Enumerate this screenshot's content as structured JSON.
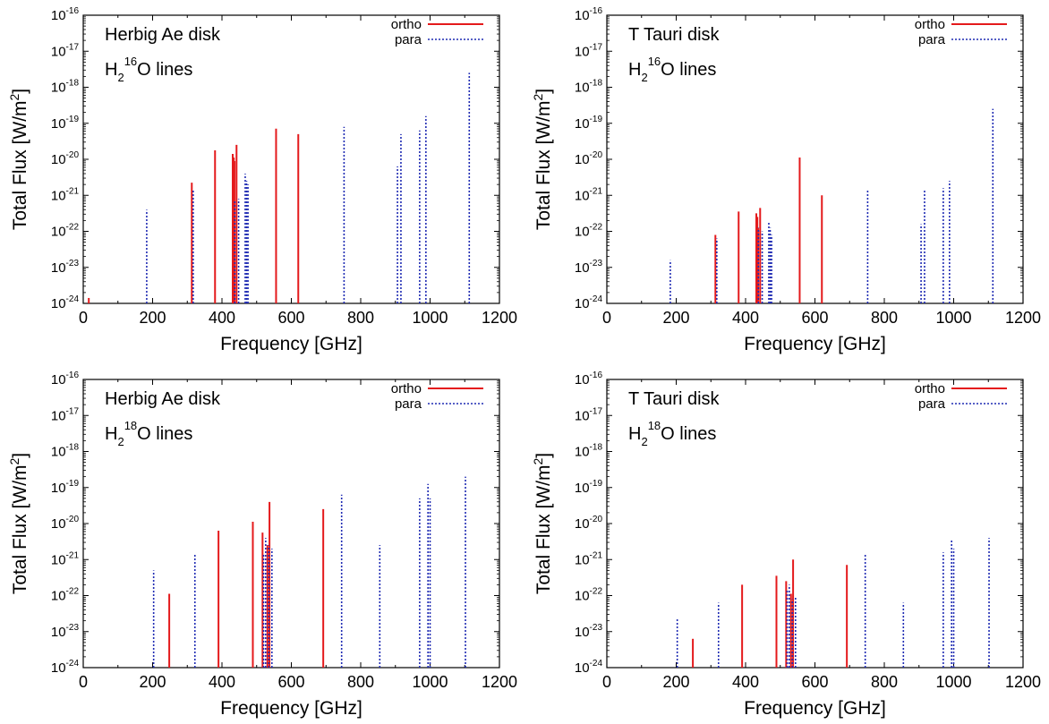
{
  "chart_data": [
    {
      "type": "bar",
      "annotation_line1": "Herbig Ae disk",
      "annotation_line2": {
        "prefix": "H",
        "sub": "2",
        "sup": "16",
        "suffix": "O lines"
      },
      "xlabel": "Frequency [GHz]",
      "ylabel": {
        "main": "Total Flux [W/m",
        "sup": "2",
        "end": "]"
      },
      "xlim": [
        0,
        1200
      ],
      "ylim_log10": [
        -24,
        -16
      ],
      "y_scale": "log",
      "xticks": [
        "0",
        "200",
        "400",
        "600",
        "800",
        "1000",
        "1200"
      ],
      "legend_position": "top-right",
      "series": [
        {
          "name": "ortho",
          "color": "#e41a1c",
          "style": "solid",
          "x": [
            16,
            313,
            380,
            431,
            434,
            436,
            442,
            556,
            620
          ],
          "log10_flux": [
            -23.85,
            -20.65,
            -19.75,
            -19.85,
            -19.95,
            -20.05,
            -19.6,
            -19.15,
            -19.3
          ]
        },
        {
          "name": "para",
          "color": "#1f2bb3",
          "style": "dotted",
          "x": [
            183,
            317,
            437,
            448,
            467,
            471,
            475,
            752,
            906,
            916,
            970,
            988,
            1113
          ],
          "log10_flux": [
            -21.4,
            -20.85,
            -21.15,
            -21.1,
            -20.4,
            -20.6,
            -20.7,
            -19.1,
            -20.2,
            -19.3,
            -19.2,
            -18.8,
            -17.6
          ]
        }
      ]
    },
    {
      "type": "bar",
      "annotation_line1": "T Tauri disk",
      "annotation_line2": {
        "prefix": "H",
        "sub": "2",
        "sup": "16",
        "suffix": "O lines"
      },
      "xlabel": "Frequency [GHz]",
      "ylabel": {
        "main": "Total Flux [W/m",
        "sup": "2",
        "end": "]"
      },
      "xlim": [
        0,
        1200
      ],
      "ylim_log10": [
        -24,
        -16
      ],
      "y_scale": "log",
      "xticks": [
        "0",
        "200",
        "400",
        "600",
        "800",
        "1000",
        "1200"
      ],
      "legend_position": "top-right",
      "series": [
        {
          "name": "ortho",
          "color": "#e41a1c",
          "style": "solid",
          "x": [
            313,
            380,
            431,
            434,
            436,
            442,
            556,
            620
          ],
          "log10_flux": [
            -22.1,
            -21.45,
            -21.5,
            -21.6,
            -21.9,
            -21.35,
            -19.95,
            -21.0
          ]
        },
        {
          "name": "para",
          "color": "#1f2bb3",
          "style": "dotted",
          "x": [
            183,
            317,
            437,
            448,
            467,
            471,
            475,
            752,
            906,
            916,
            970,
            988,
            1113
          ],
          "log10_flux": [
            -22.8,
            -22.2,
            -21.9,
            -22.0,
            -21.75,
            -21.9,
            -22.1,
            -20.85,
            -21.8,
            -20.85,
            -20.8,
            -20.6,
            -18.6
          ]
        }
      ]
    },
    {
      "type": "bar",
      "annotation_line1": "Herbig Ae disk",
      "annotation_line2": {
        "prefix": "H",
        "sub": "2",
        "sup": "18",
        "suffix": "O lines"
      },
      "xlabel": "Frequency [GHz]",
      "ylabel": {
        "main": "Total Flux [W/m",
        "sup": "2",
        "end": "]"
      },
      "xlim": [
        0,
        1200
      ],
      "ylim_log10": [
        -24,
        -16
      ],
      "y_scale": "log",
      "xticks": [
        "0",
        "200",
        "400",
        "600",
        "800",
        "1000",
        "1200"
      ],
      "legend_position": "top-right",
      "series": [
        {
          "name": "ortho",
          "color": "#e41a1c",
          "style": "solid",
          "x": [
            248,
            390,
            489,
            517,
            531,
            537,
            692
          ],
          "log10_flux": [
            -21.95,
            -20.2,
            -19.95,
            -20.25,
            -20.6,
            -19.4,
            -19.6
          ]
        },
        {
          "name": "para",
          "color": "#1f2bb3",
          "style": "dotted",
          "x": [
            203,
            322,
            520,
            526,
            535,
            544,
            745,
            855,
            970,
            994,
            1000,
            1102
          ],
          "log10_flux": [
            -21.3,
            -20.85,
            -20.85,
            -20.4,
            -20.6,
            -20.7,
            -19.2,
            -20.6,
            -19.3,
            -18.9,
            -19.3,
            -18.7
          ]
        }
      ]
    },
    {
      "type": "bar",
      "annotation_line1": "T Tauri disk",
      "annotation_line2": {
        "prefix": "H",
        "sub": "2",
        "sup": "18",
        "suffix": "O lines"
      },
      "xlabel": "Frequency [GHz]",
      "ylabel": {
        "main": "Total Flux [W/m",
        "sup": "2",
        "end": "]"
      },
      "xlim": [
        0,
        1200
      ],
      "ylim_log10": [
        -24,
        -16
      ],
      "y_scale": "log",
      "xticks": [
        "0",
        "200",
        "400",
        "600",
        "800",
        "1000",
        "1200"
      ],
      "legend_position": "top-right",
      "series": [
        {
          "name": "ortho",
          "color": "#e41a1c",
          "style": "solid",
          "x": [
            248,
            390,
            489,
            517,
            531,
            537,
            692
          ],
          "log10_flux": [
            -23.2,
            -21.7,
            -21.45,
            -21.6,
            -21.95,
            -21.0,
            -21.15
          ]
        },
        {
          "name": "para",
          "color": "#1f2bb3",
          "style": "dotted",
          "x": [
            203,
            322,
            520,
            526,
            535,
            544,
            745,
            855,
            970,
            994,
            1000,
            1102
          ],
          "log10_flux": [
            -22.65,
            -22.2,
            -21.85,
            -21.7,
            -22.1,
            -22.05,
            -20.85,
            -22.2,
            -20.8,
            -20.45,
            -20.7,
            -20.4
          ]
        }
      ]
    }
  ]
}
